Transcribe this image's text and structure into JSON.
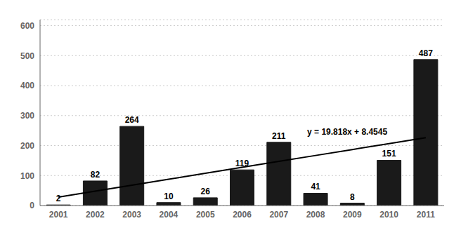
{
  "chart_data": {
    "type": "bar",
    "categories": [
      "2001",
      "2002",
      "2003",
      "2004",
      "2005",
      "2006",
      "2007",
      "2008",
      "2009",
      "2010",
      "2011"
    ],
    "series": [
      {
        "type": "bar",
        "color": "#1a1a1a",
        "values": [
          2,
          82,
          264,
          10,
          26,
          119,
          211,
          41,
          8,
          151,
          487
        ]
      },
      {
        "type": "line",
        "color": "#000000",
        "values": [
          28.2725,
          48.0905,
          67.9085,
          87.7265,
          107.5445,
          127.3625,
          147.1805,
          166.9985,
          186.8165,
          206.6345,
          226.4525
        ]
      }
    ],
    "ylim": [
      0,
      620
    ],
    "yticks": [
      0,
      100,
      200,
      300,
      400,
      500,
      600
    ],
    "grid": true,
    "data_labels": true,
    "annotations": [
      "y = 19.818x + 8.4545"
    ]
  }
}
